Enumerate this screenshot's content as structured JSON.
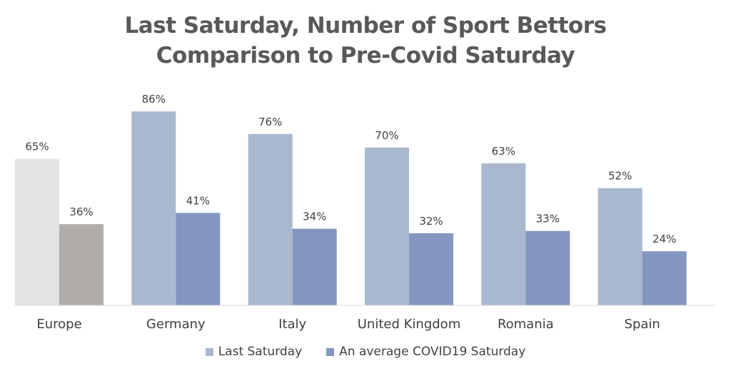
{
  "chart_data": {
    "type": "bar",
    "title": [
      "Last  Saturday, Number of Sport Bettors",
      "Comparison to Pre-Covid Saturday"
    ],
    "categories": [
      "Europe",
      "Germany",
      "Italy",
      "United Kingdom",
      "Romania",
      "Spain"
    ],
    "series": [
      {
        "name": "Last Saturday",
        "values": [
          65,
          86,
          76,
          70,
          63,
          52
        ],
        "labels": [
          "65%",
          "86%",
          "76%",
          "70%",
          "63%",
          "52%"
        ],
        "color": "#a9b8cf",
        "highlight_color": "#e3e3e3"
      },
      {
        "name": "An average COVID19 Saturday",
        "values": [
          36,
          41,
          34,
          32,
          33,
          24
        ],
        "labels": [
          "36%",
          "41%",
          "34%",
          "32%",
          "33%",
          "24%"
        ],
        "color": "#8497c1",
        "highlight_color": "#b0adab"
      }
    ],
    "highlight_category": "Europe",
    "ylim": [
      0,
      100
    ],
    "xlabel": "",
    "ylabel": "",
    "grid": false,
    "legend_position": "bottom"
  }
}
